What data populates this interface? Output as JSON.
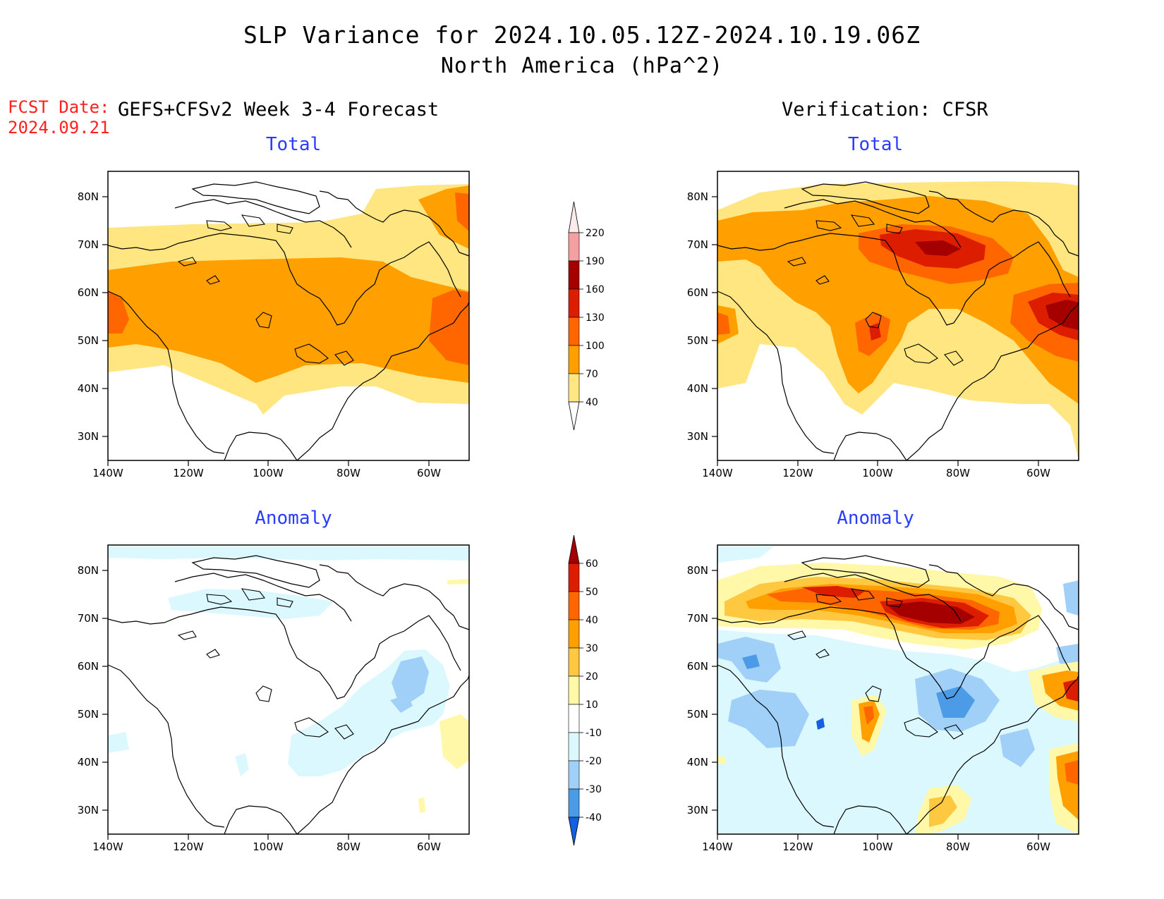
{
  "title": {
    "line1": "SLP Variance for 2024.10.05.12Z-2024.10.19.06Z",
    "line2": "North America (hPa^2)"
  },
  "fcst": {
    "label": "FCST Date:",
    "date": "2024.09.21"
  },
  "left_header": "GEFS+CFSv2 Week 3-4 Forecast",
  "right_header": "Verification: CFSR",
  "panels": {
    "top_left_title": "Total",
    "top_right_title": "Total",
    "bottom_left_title": "Anomaly",
    "bottom_right_title": "Anomaly"
  },
  "axes": {
    "lat_labels": [
      "80N",
      "70N",
      "60N",
      "50N",
      "40N",
      "30N"
    ],
    "lon_labels": [
      "140W",
      "120W",
      "100W",
      "80W",
      "60W"
    ]
  },
  "colorbars": {
    "total": {
      "labels": [
        "220",
        "190",
        "160",
        "130",
        "100",
        "70",
        "40"
      ],
      "colors": [
        "#fdeaea",
        "#f5a0a0",
        "#a50000",
        "#dc1d00",
        "#ff6600",
        "#ffa000",
        "#ffe680"
      ]
    },
    "anomaly": {
      "labels": [
        "60",
        "50",
        "40",
        "30",
        "20",
        "10",
        "-10",
        "-20",
        "-30",
        "-40"
      ],
      "colors": [
        "#a50000",
        "#dc1d00",
        "#ff6600",
        "#ffa000",
        "#ffc840",
        "#fff8a8",
        "#ffffff",
        "#dcf8ff",
        "#a0d0f8",
        "#4b9be6",
        "#1460e0"
      ]
    }
  }
}
